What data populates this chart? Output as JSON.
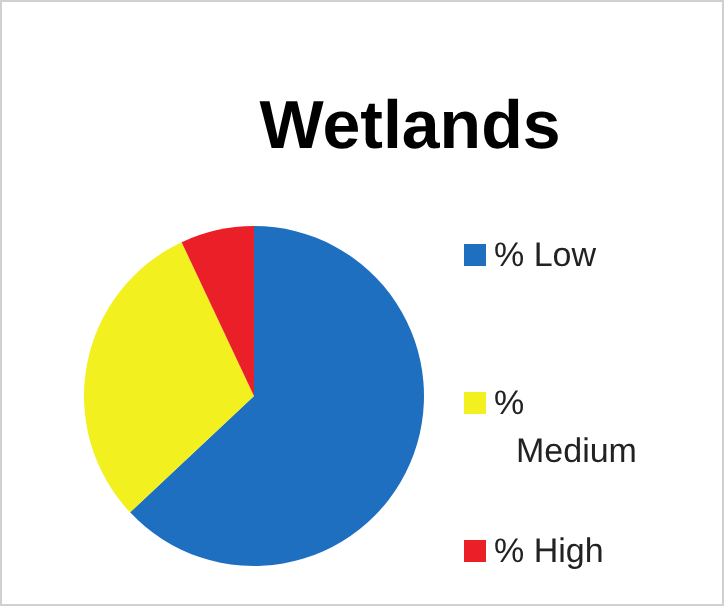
{
  "chart_data": {
    "type": "pie",
    "title": "Wetlands",
    "categories": [
      "% Low",
      "% Medium",
      "% High"
    ],
    "values": [
      63,
      30,
      7
    ],
    "colors": [
      "#1f6fc0",
      "#f2f01e",
      "#ea1f27"
    ],
    "legend": "right"
  }
}
